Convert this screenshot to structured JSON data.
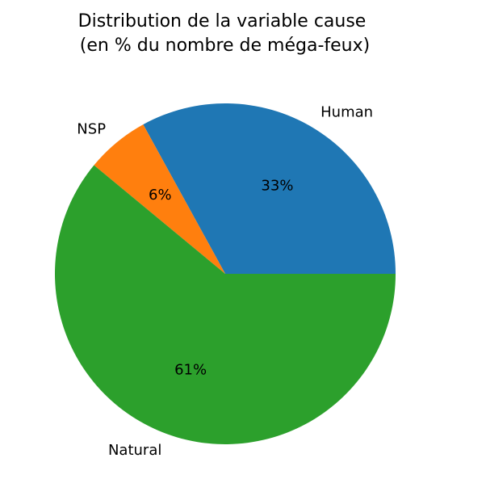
{
  "chart_data": {
    "type": "pie",
    "title_line1": "Distribution de la variable cause",
    "title_line2": " (en % du nombre de méga-feux)",
    "start_angle_deg": 0,
    "direction": "counterclockwise",
    "slices": [
      {
        "label": "Human",
        "value": 33,
        "pct_label": "33%",
        "color": "#1f77b4"
      },
      {
        "label": "NSP",
        "value": 6,
        "pct_label": "6%",
        "color": "#ff7f0e"
      },
      {
        "label": "Natural",
        "value": 61,
        "pct_label": "61%",
        "color": "#2ca02c"
      }
    ]
  }
}
